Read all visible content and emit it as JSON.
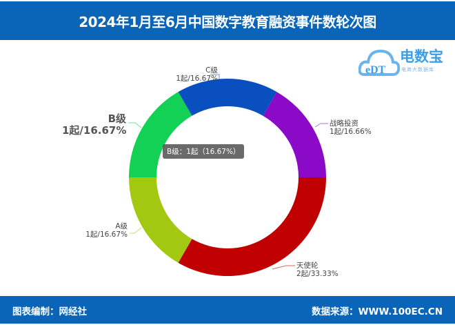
{
  "header": {
    "title": "2024年1月至6月中国数字教育融资事件数轮次图"
  },
  "logo": {
    "name": "电数宝",
    "sub": "电商大数据库",
    "mark": "eDT"
  },
  "footer": {
    "left": "图表编制：网经社",
    "right": "数据来源：WWW.100EC.CN"
  },
  "tooltip": {
    "text": "B级：1起（16.67%）"
  },
  "chart_data": {
    "type": "pie",
    "donut": true,
    "title": "2024年1月至6月中国数字教育融资事件数轮次图",
    "slices": [
      {
        "name": "天使轮",
        "count": 2,
        "percent": 33.33,
        "label": "2起/33.33%",
        "color": "#c00000"
      },
      {
        "name": "A级",
        "count": 1,
        "percent": 16.67,
        "label": "1起/16.67%",
        "color": "#a2c812"
      },
      {
        "name": "B级",
        "count": 1,
        "percent": 16.67,
        "label": "1起/16.67%",
        "color": "#12d155"
      },
      {
        "name": "C级",
        "count": 1,
        "percent": 16.67,
        "label": "1起/16.67%",
        "color": "#0a4fc0"
      },
      {
        "name": "战略投资",
        "count": 1,
        "percent": 16.66,
        "label": "1起/16.66%",
        "color": "#8a0ac8"
      }
    ]
  }
}
